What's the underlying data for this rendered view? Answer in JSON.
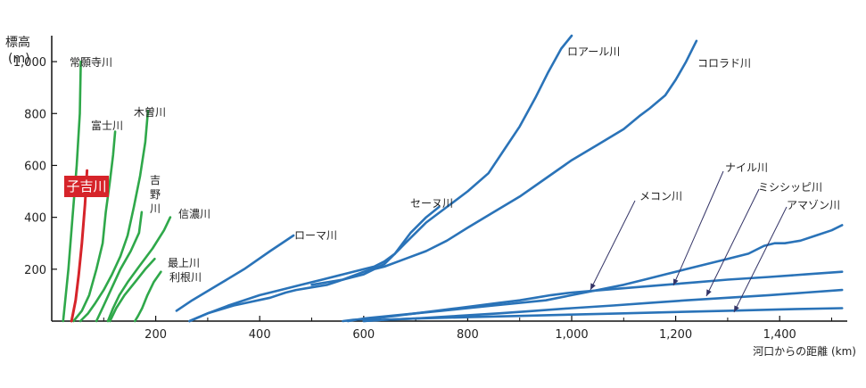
{
  "chart_data": {
    "type": "line",
    "title": "",
    "ylabel": "標高",
    "yunit": "(m)",
    "xlabel": "河口からの距離 (km)",
    "xlim": [
      0,
      1530
    ],
    "ylim": [
      0,
      1100
    ],
    "xticks": [
      "200",
      "400",
      "600",
      "800",
      "1,000",
      "1,200",
      "1,400"
    ],
    "xtick_values": [
      200,
      400,
      600,
      800,
      1000,
      1200,
      1400
    ],
    "yticks": [
      "200",
      "400",
      "600",
      "800",
      "1,000"
    ],
    "ytick_values": [
      200,
      400,
      600,
      800,
      1000
    ],
    "grid": false,
    "colors": {
      "japan": "#2fa84a",
      "foreign": "#2a73b8",
      "koyoshi": "#d6242a",
      "label_bg": "#d6242a",
      "axis": "#111111"
    },
    "series": [
      {
        "name": "常願寺川",
        "group": "japan",
        "x": [
          56,
          54,
          48,
          40,
          32,
          22
        ],
        "y": [
          1000,
          800,
          600,
          400,
          200,
          0
        ]
      },
      {
        "name": "富士川",
        "group": "japan",
        "x": [
          122,
          118,
          112,
          104,
          98,
          86,
          72,
          58,
          42
        ],
        "y": [
          730,
          640,
          540,
          420,
          300,
          200,
          100,
          40,
          0
        ]
      },
      {
        "name": "木曽川",
        "group": "japan",
        "x": [
          185,
          180,
          170,
          158,
          146,
          132,
          116,
          100,
          84,
          70,
          55
        ],
        "y": [
          810,
          690,
          560,
          440,
          330,
          250,
          180,
          120,
          70,
          30,
          0
        ]
      },
      {
        "name": "吉野川",
        "group": "japan",
        "x": [
          173,
          168,
          152,
          132,
          116,
          100,
          86
        ],
        "y": [
          420,
          340,
          270,
          200,
          130,
          60,
          0
        ]
      },
      {
        "name": "信濃川",
        "group": "japan",
        "x": [
          228,
          216,
          194,
          168,
          146,
          130,
          118,
          108
        ],
        "y": [
          400,
          350,
          280,
          210,
          150,
          100,
          50,
          0
        ]
      },
      {
        "name": "最上川",
        "group": "japan",
        "x": [
          198,
          180,
          160,
          140,
          124,
          112
        ],
        "y": [
          240,
          200,
          150,
          100,
          50,
          0
        ]
      },
      {
        "name": "利根川",
        "group": "japan",
        "x": [
          210,
          196,
          184,
          174,
          166,
          160
        ],
        "y": [
          190,
          150,
          100,
          50,
          20,
          0
        ]
      },
      {
        "name": "子吉川",
        "group": "koyoshi",
        "x": [
          68,
          64,
          58,
          52,
          46,
          38
        ],
        "y": [
          580,
          450,
          300,
          180,
          80,
          0
        ]
      },
      {
        "name": "ローマ川",
        "group": "foreign",
        "x": [
          465,
          420,
          370,
          320,
          270,
          240
        ],
        "y": [
          330,
          270,
          200,
          140,
          80,
          40
        ]
      },
      {
        "name": "セーヌ川",
        "group": "foreign",
        "x": [
          745,
          720,
          690,
          660,
          640,
          630,
          600,
          560,
          530,
          500,
          470,
          450,
          420,
          350,
          300,
          265
        ],
        "y": [
          440,
          400,
          340,
          260,
          220,
          210,
          190,
          160,
          140,
          130,
          120,
          110,
          90,
          60,
          30,
          0
        ]
      },
      {
        "name": "ロアール川",
        "group": "foreign",
        "x": [
          1000,
          980,
          955,
          930,
          900,
          870,
          840,
          800,
          760,
          720,
          700,
          680,
          660,
          640,
          620,
          600,
          560,
          520,
          480,
          440,
          400,
          340,
          300,
          265
        ],
        "y": [
          1100,
          1050,
          960,
          860,
          750,
          660,
          570,
          500,
          440,
          380,
          340,
          300,
          260,
          230,
          210,
          200,
          180,
          160,
          140,
          120,
          100,
          60,
          30,
          0
        ]
      },
      {
        "name": "コロラド川",
        "group": "foreign",
        "x": [
          1240,
          1220,
          1200,
          1180,
          1150,
          1130,
          1100,
          1050,
          1000,
          950,
          900,
          850,
          800,
          760,
          720,
          680,
          640,
          620,
          600,
          560,
          530,
          500
        ],
        "y": [
          1080,
          1000,
          930,
          870,
          820,
          790,
          740,
          680,
          620,
          550,
          480,
          420,
          360,
          310,
          270,
          240,
          210,
          200,
          180,
          160,
          150,
          140
        ]
      },
      {
        "name": "ナイル川",
        "group": "foreign",
        "x": [
          1520,
          1500,
          1470,
          1440,
          1410,
          1390,
          1370,
          1340,
          1300,
          1260,
          1220,
          1180,
          1140,
          1100,
          1050,
          1000,
          950,
          900,
          850,
          800,
          750,
          700,
          650,
          600,
          570
        ],
        "y": [
          370,
          350,
          330,
          310,
          300,
          300,
          290,
          260,
          240,
          220,
          200,
          180,
          160,
          140,
          120,
          100,
          80,
          70,
          60,
          50,
          40,
          30,
          20,
          10,
          0
        ]
      },
      {
        "name": "メコン川",
        "group": "foreign",
        "x": [
          1520,
          1450,
          1380,
          1300,
          1240,
          1180,
          1120,
          1060,
          1000,
          960,
          930,
          900,
          860,
          820,
          780,
          740,
          700,
          660,
          620,
          580,
          560
        ],
        "y": [
          190,
          180,
          170,
          160,
          150,
          140,
          130,
          120,
          110,
          100,
          90,
          80,
          70,
          60,
          50,
          40,
          30,
          20,
          10,
          5,
          0
        ]
      },
      {
        "name": "ミシシッピ川",
        "group": "foreign",
        "x": [
          1520,
          1450,
          1380,
          1300,
          1220,
          1150,
          1080,
          1000,
          930,
          860,
          780,
          700,
          640,
          600
        ],
        "y": [
          120,
          110,
          100,
          90,
          80,
          70,
          60,
          50,
          40,
          30,
          20,
          10,
          5,
          0
        ]
      },
      {
        "name": "アマゾン川",
        "group": "foreign",
        "x": [
          1520,
          1400,
          1300,
          1200,
          1100,
          1000,
          900,
          800,
          700,
          640,
          600
        ],
        "y": [
          50,
          45,
          40,
          35,
          30,
          25,
          20,
          15,
          10,
          5,
          0
        ]
      }
    ],
    "annotations": {
      "yunit_label": "(m)",
      "ylabel_text": "標高",
      "koyoshi_label": "子吉川",
      "nile_label": "ナイル川",
      "mekong_label": "メコン川",
      "mississippi_label": "ミシシッピ川",
      "amazon_label": "アマゾン川",
      "seine_label": "セーヌ川",
      "roma_label": "ローマ川",
      "loire_label": "ロアール川",
      "colorado_label": "コロラド川",
      "shinano_label": "信濃川",
      "mogami_label": "最上川",
      "tone_label": "利根川",
      "kiso_label": "木曽川",
      "fuji_label": "富士川",
      "joganji_label": "常願寺川",
      "yoshino_chars": [
        "吉",
        "野",
        "川"
      ]
    }
  }
}
